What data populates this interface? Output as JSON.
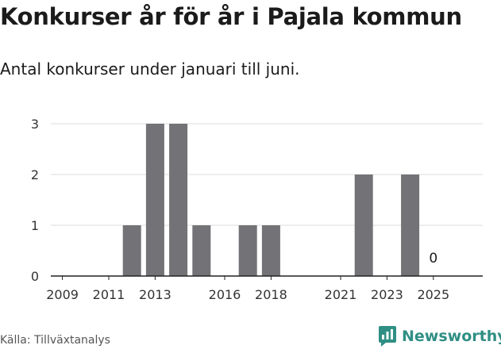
{
  "title": "Konkurser år för år i Pajala kommun",
  "subtitle": "Antal konkurser under januari till juni.",
  "source": "Källa: Tillväxtanalys",
  "brand": {
    "name": "Newsworthy",
    "icon": "newsworthy-logo-icon",
    "color": "#2f8f84"
  },
  "colors": {
    "bar": "#737276",
    "grid": "#dddddd",
    "text": "#1b1b1b"
  },
  "chart_data": {
    "type": "bar",
    "x": [
      2009,
      2010,
      2011,
      2012,
      2013,
      2014,
      2015,
      2016,
      2017,
      2018,
      2019,
      2020,
      2021,
      2022,
      2023,
      2024,
      2025
    ],
    "values": [
      0,
      0,
      0,
      1,
      3,
      3,
      1,
      0,
      1,
      1,
      null,
      null,
      0,
      2,
      0,
      2,
      0
    ],
    "x_tick_labels": [
      "2009",
      "2011",
      "2013",
      "2016",
      "2018",
      "2021",
      "2023",
      "2025"
    ],
    "y_ticks": [
      0,
      1,
      2,
      3
    ],
    "ylim": [
      0,
      3
    ],
    "value_labels": [
      {
        "x": 2025,
        "text": "0"
      }
    ],
    "grid": true,
    "xlabel": "",
    "ylabel": ""
  }
}
